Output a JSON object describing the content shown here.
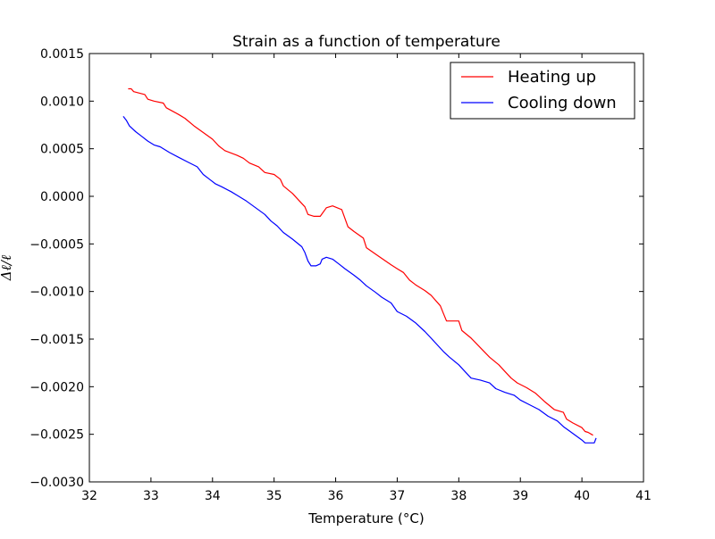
{
  "chart_data": {
    "type": "line",
    "title": "Strain as a function of temperature",
    "xlabel": "Temperature (°C)",
    "ylabel": "Δℓ/ℓ",
    "xlim": [
      32,
      41
    ],
    "ylim": [
      -0.003,
      0.0015
    ],
    "x_ticks": [
      32,
      33,
      34,
      35,
      36,
      37,
      38,
      39,
      40,
      41
    ],
    "x_tick_labels": [
      "32",
      "33",
      "34",
      "35",
      "36",
      "37",
      "38",
      "39",
      "40",
      "41"
    ],
    "y_ticks": [
      -0.003,
      -0.0025,
      -0.002,
      -0.0015,
      -0.001,
      -0.0005,
      0.0,
      0.0005,
      0.001,
      0.0015
    ],
    "y_tick_labels": [
      "−0.0030",
      "−0.0025",
      "−0.0020",
      "−0.0015",
      "−0.0010",
      "−0.0005",
      "0.0000",
      "0.0005",
      "0.0010",
      "0.0015"
    ],
    "grid": false,
    "legend_position": "top-right",
    "series": [
      {
        "name": "Heating up",
        "color": "#ff0000",
        "points": [
          [
            32.63,
            0.00113
          ],
          [
            32.68,
            0.00113
          ],
          [
            32.72,
            0.0011
          ],
          [
            32.9,
            0.00107
          ],
          [
            32.95,
            0.00102
          ],
          [
            33.05,
            0.001
          ],
          [
            33.2,
            0.00098
          ],
          [
            33.25,
            0.00093
          ],
          [
            33.45,
            0.00086
          ],
          [
            33.55,
            0.00082
          ],
          [
            33.7,
            0.00074
          ],
          [
            33.85,
            0.00067
          ],
          [
            34.0,
            0.0006
          ],
          [
            34.1,
            0.00053
          ],
          [
            34.2,
            0.00048
          ],
          [
            34.4,
            0.00043
          ],
          [
            34.5,
            0.0004
          ],
          [
            34.6,
            0.00035
          ],
          [
            34.75,
            0.00031
          ],
          [
            34.85,
            0.00025
          ],
          [
            35.0,
            0.00023
          ],
          [
            35.1,
            0.00018
          ],
          [
            35.15,
            0.00011
          ],
          [
            35.3,
            3e-05
          ],
          [
            35.4,
            -4e-05
          ],
          [
            35.5,
            -0.00011
          ],
          [
            35.55,
            -0.00019
          ],
          [
            35.65,
            -0.00021
          ],
          [
            35.75,
            -0.00021
          ],
          [
            35.85,
            -0.00012
          ],
          [
            35.95,
            -0.0001
          ],
          [
            36.1,
            -0.00014
          ],
          [
            36.2,
            -0.00032
          ],
          [
            36.3,
            -0.00037
          ],
          [
            36.45,
            -0.00044
          ],
          [
            36.5,
            -0.00054
          ],
          [
            36.7,
            -0.00063
          ],
          [
            36.9,
            -0.00072
          ],
          [
            37.0,
            -0.00076
          ],
          [
            37.1,
            -0.0008
          ],
          [
            37.2,
            -0.00088
          ],
          [
            37.3,
            -0.00093
          ],
          [
            37.45,
            -0.00099
          ],
          [
            37.55,
            -0.00104
          ],
          [
            37.7,
            -0.00115
          ],
          [
            37.75,
            -0.00123
          ],
          [
            37.8,
            -0.00131
          ],
          [
            38.0,
            -0.00131
          ],
          [
            38.05,
            -0.00141
          ],
          [
            38.2,
            -0.00149
          ],
          [
            38.35,
            -0.00159
          ],
          [
            38.5,
            -0.00169
          ],
          [
            38.65,
            -0.00177
          ],
          [
            38.75,
            -0.00184
          ],
          [
            38.85,
            -0.00191
          ],
          [
            38.95,
            -0.00196
          ],
          [
            39.1,
            -0.00201
          ],
          [
            39.25,
            -0.00207
          ],
          [
            39.4,
            -0.00216
          ],
          [
            39.55,
            -0.00224
          ],
          [
            39.7,
            -0.00227
          ],
          [
            39.75,
            -0.00234
          ],
          [
            39.85,
            -0.00238
          ],
          [
            40.0,
            -0.00243
          ],
          [
            40.05,
            -0.00247
          ],
          [
            40.1,
            -0.00248
          ],
          [
            40.18,
            -0.00251
          ]
        ]
      },
      {
        "name": "Cooling down",
        "color": "#0000ff",
        "points": [
          [
            32.55,
            0.00084
          ],
          [
            32.6,
            0.0008
          ],
          [
            32.65,
            0.00074
          ],
          [
            32.75,
            0.00068
          ],
          [
            32.85,
            0.00063
          ],
          [
            32.95,
            0.00058
          ],
          [
            33.05,
            0.00054
          ],
          [
            33.15,
            0.00052
          ],
          [
            33.3,
            0.00046
          ],
          [
            33.45,
            0.00041
          ],
          [
            33.6,
            0.00036
          ],
          [
            33.75,
            0.00031
          ],
          [
            33.85,
            0.00023
          ],
          [
            33.95,
            0.00018
          ],
          [
            34.05,
            0.00013
          ],
          [
            34.15,
            0.0001
          ],
          [
            34.3,
            5e-05
          ],
          [
            34.4,
            1e-05
          ],
          [
            34.55,
            -5e-05
          ],
          [
            34.7,
            -0.00012
          ],
          [
            34.85,
            -0.00019
          ],
          [
            34.95,
            -0.00026
          ],
          [
            35.05,
            -0.00031
          ],
          [
            35.15,
            -0.00038
          ],
          [
            35.3,
            -0.00045
          ],
          [
            35.45,
            -0.00053
          ],
          [
            35.5,
            -0.00059
          ],
          [
            35.55,
            -0.00068
          ],
          [
            35.6,
            -0.00073
          ],
          [
            35.68,
            -0.00073
          ],
          [
            35.75,
            -0.00071
          ],
          [
            35.78,
            -0.00066
          ],
          [
            35.85,
            -0.00064
          ],
          [
            35.95,
            -0.00066
          ],
          [
            36.05,
            -0.00071
          ],
          [
            36.15,
            -0.00076
          ],
          [
            36.3,
            -0.00083
          ],
          [
            36.4,
            -0.00088
          ],
          [
            36.5,
            -0.00094
          ],
          [
            36.65,
            -0.00101
          ],
          [
            36.75,
            -0.00106
          ],
          [
            36.9,
            -0.00112
          ],
          [
            37.0,
            -0.00121
          ],
          [
            37.15,
            -0.00126
          ],
          [
            37.3,
            -0.00133
          ],
          [
            37.45,
            -0.00142
          ],
          [
            37.55,
            -0.00149
          ],
          [
            37.65,
            -0.00156
          ],
          [
            37.75,
            -0.00163
          ],
          [
            37.85,
            -0.00169
          ],
          [
            38.0,
            -0.00177
          ],
          [
            38.1,
            -0.00184
          ],
          [
            38.2,
            -0.00191
          ],
          [
            38.35,
            -0.00193
          ],
          [
            38.5,
            -0.00196
          ],
          [
            38.6,
            -0.00202
          ],
          [
            38.75,
            -0.00206
          ],
          [
            38.9,
            -0.00209
          ],
          [
            39.0,
            -0.00214
          ],
          [
            39.15,
            -0.00219
          ],
          [
            39.3,
            -0.00224
          ],
          [
            39.45,
            -0.00231
          ],
          [
            39.6,
            -0.00236
          ],
          [
            39.7,
            -0.00242
          ],
          [
            39.85,
            -0.00249
          ],
          [
            40.0,
            -0.00256
          ],
          [
            40.05,
            -0.00259
          ],
          [
            40.2,
            -0.00259
          ],
          [
            40.23,
            -0.00254
          ]
        ]
      }
    ]
  }
}
